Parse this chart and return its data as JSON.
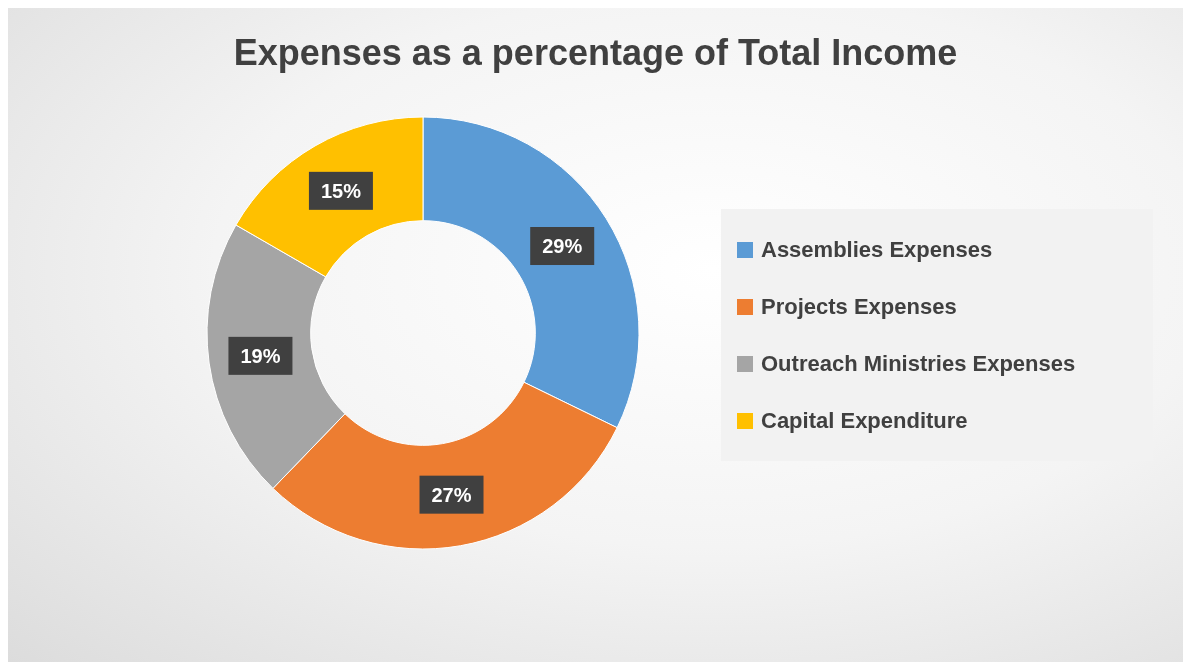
{
  "chart_data": {
    "type": "donut",
    "title": "Expenses as a percentage of Total Income",
    "categories": [
      "Assemblies Expenses",
      "Projects Expenses",
      "Outreach Ministries Expenses",
      "Capital Expenditure"
    ],
    "values": [
      29,
      27,
      19,
      15
    ],
    "colors": [
      "#5b9bd5",
      "#ed7d31",
      "#a5a5a5",
      "#ffc000"
    ],
    "value_labels": [
      "29%",
      "27%",
      "19%",
      "15%"
    ],
    "legend": "right"
  }
}
